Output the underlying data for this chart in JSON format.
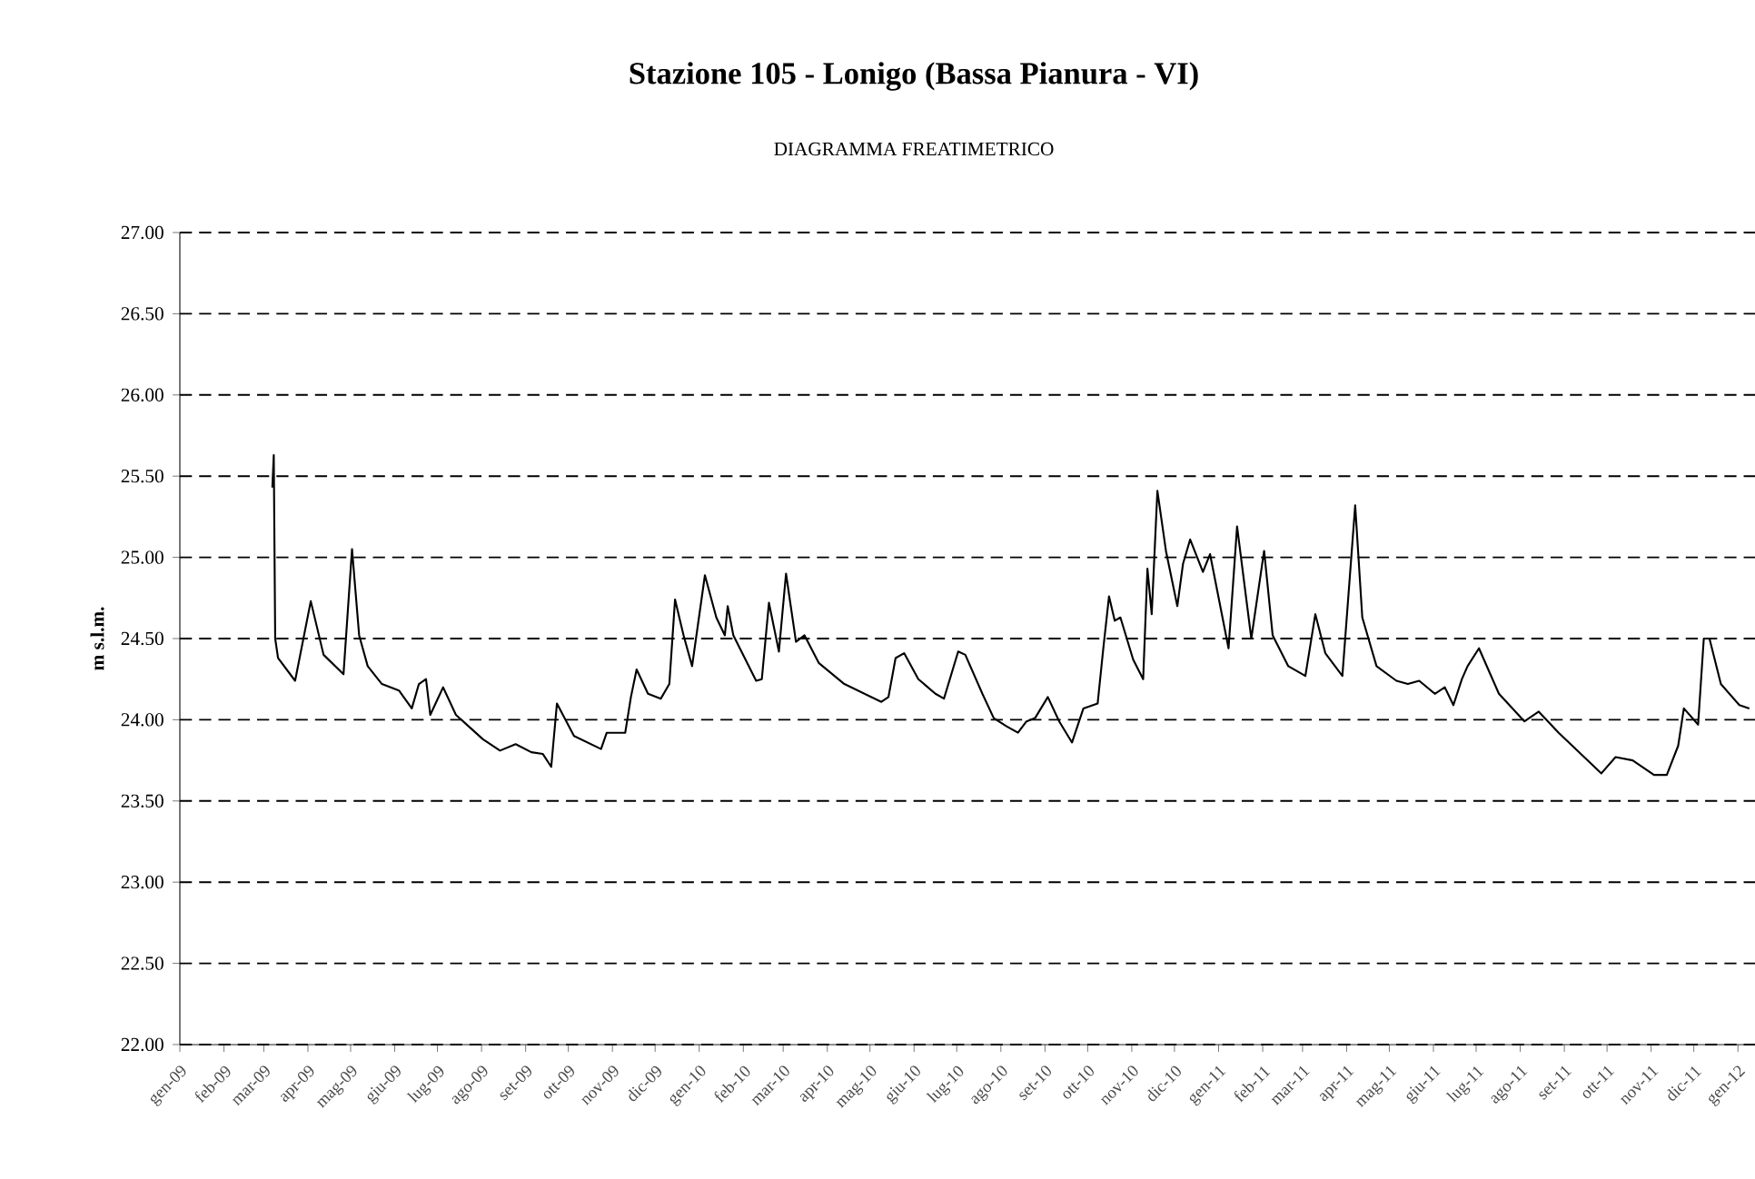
{
  "chart_data": {
    "type": "line",
    "title": "Stazione 105 - Lonigo (Bassa Pianura - VI)",
    "subtitle": "DIAGRAMMA FREATIMETRICO",
    "ylabel": "m s.l.m.",
    "xlim": [
      "2009-01-01",
      "2012-01-13"
    ],
    "ylim": [
      22,
      27
    ],
    "yticks": [
      {
        "value": 22,
        "label": "22.00"
      },
      {
        "value": 22.5,
        "label": "22.50"
      },
      {
        "value": 23,
        "label": "23.00"
      },
      {
        "value": 23.5,
        "label": "23.50"
      },
      {
        "value": 24,
        "label": "24.00"
      },
      {
        "value": 24.5,
        "label": "24.50"
      },
      {
        "value": 25,
        "label": "25.00"
      },
      {
        "value": 25.5,
        "label": "25.50"
      },
      {
        "value": 26,
        "label": "26.00"
      },
      {
        "value": 26.5,
        "label": "26.50"
      },
      {
        "value": 27,
        "label": "27.00"
      }
    ],
    "xticks": [
      {
        "value": "2009-01-01",
        "label": "gen-09"
      },
      {
        "value": "2009-02-01",
        "label": "feb-09"
      },
      {
        "value": "2009-03-01",
        "label": "mar-09"
      },
      {
        "value": "2009-04-01",
        "label": "apr-09"
      },
      {
        "value": "2009-05-01",
        "label": "mag-09"
      },
      {
        "value": "2009-06-01",
        "label": "giu-09"
      },
      {
        "value": "2009-07-01",
        "label": "lug-09"
      },
      {
        "value": "2009-08-01",
        "label": "ago-09"
      },
      {
        "value": "2009-09-01",
        "label": "set-09"
      },
      {
        "value": "2009-10-01",
        "label": "ott-09"
      },
      {
        "value": "2009-11-01",
        "label": "nov-09"
      },
      {
        "value": "2009-12-01",
        "label": "dic-09"
      },
      {
        "value": "2010-01-01",
        "label": "gen-10"
      },
      {
        "value": "2010-02-01",
        "label": "feb-10"
      },
      {
        "value": "2010-03-01",
        "label": "mar-10"
      },
      {
        "value": "2010-04-01",
        "label": "apr-10"
      },
      {
        "value": "2010-05-01",
        "label": "mag-10"
      },
      {
        "value": "2010-06-01",
        "label": "giu-10"
      },
      {
        "value": "2010-07-01",
        "label": "lug-10"
      },
      {
        "value": "2010-08-01",
        "label": "ago-10"
      },
      {
        "value": "2010-09-01",
        "label": "set-10"
      },
      {
        "value": "2010-10-01",
        "label": "ott-10"
      },
      {
        "value": "2010-11-01",
        "label": "nov-10"
      },
      {
        "value": "2010-12-01",
        "label": "dic-10"
      },
      {
        "value": "2011-01-01",
        "label": "gen-11"
      },
      {
        "value": "2011-02-01",
        "label": "feb-11"
      },
      {
        "value": "2011-03-01",
        "label": "mar-11"
      },
      {
        "value": "2011-04-01",
        "label": "apr-11"
      },
      {
        "value": "2011-05-01",
        "label": "mag-11"
      },
      {
        "value": "2011-06-01",
        "label": "giu-11"
      },
      {
        "value": "2011-07-01",
        "label": "lug-11"
      },
      {
        "value": "2011-08-01",
        "label": "ago-11"
      },
      {
        "value": "2011-09-01",
        "label": "set-11"
      },
      {
        "value": "2011-10-01",
        "label": "ott-11"
      },
      {
        "value": "2011-11-01",
        "label": "nov-11"
      },
      {
        "value": "2011-12-01",
        "label": "dic-11"
      },
      {
        "value": "2012-01-01",
        "label": "gen-12"
      }
    ],
    "grid": "y",
    "series": [
      {
        "color": "#000000",
        "x": [
          "2009-03-07",
          "2009-03-08",
          "2009-03-09",
          "2009-03-11",
          "2009-03-23",
          "2009-04-03",
          "2009-04-12",
          "2009-04-26",
          "2009-05-02",
          "2009-05-07",
          "2009-05-13",
          "2009-05-23",
          "2009-06-04",
          "2009-06-13",
          "2009-06-18",
          "2009-06-23",
          "2009-06-26",
          "2009-07-05",
          "2009-07-14",
          "2009-08-02",
          "2009-08-14",
          "2009-08-25",
          "2009-09-05",
          "2009-09-13",
          "2009-09-19",
          "2009-09-23",
          "2009-10-05",
          "2009-10-24",
          "2009-10-28",
          "2009-11-10",
          "2009-11-14",
          "2009-11-18",
          "2009-11-26",
          "2009-12-05",
          "2009-12-11",
          "2009-12-15",
          "2009-12-21",
          "2009-12-27",
          "2010-01-05",
          "2010-01-13",
          "2010-01-19",
          "2010-01-21",
          "2010-01-25",
          "2010-02-10",
          "2010-02-14",
          "2010-02-19",
          "2010-02-26",
          "2010-03-03",
          "2010-03-10",
          "2010-03-16",
          "2010-03-26",
          "2010-04-13",
          "2010-05-09",
          "2010-05-14",
          "2010-05-19",
          "2010-05-25",
          "2010-06-04",
          "2010-06-16",
          "2010-06-22",
          "2010-07-02",
          "2010-07-07",
          "2010-07-19",
          "2010-07-27",
          "2010-08-05",
          "2010-08-13",
          "2010-08-19",
          "2010-08-25",
          "2010-09-03",
          "2010-09-11",
          "2010-09-20",
          "2010-09-28",
          "2010-10-08",
          "2010-10-12",
          "2010-10-16",
          "2010-10-20",
          "2010-10-24",
          "2010-11-02",
          "2010-11-09",
          "2010-11-12",
          "2010-11-15",
          "2010-11-19",
          "2010-11-25",
          "2010-12-03",
          "2010-12-07",
          "2010-12-12",
          "2010-12-21",
          "2010-12-26",
          "2011-01-08",
          "2011-01-14",
          "2011-01-24",
          "2011-02-02",
          "2011-02-08",
          "2011-02-19",
          "2011-03-03",
          "2011-03-10",
          "2011-03-17",
          "2011-03-29",
          "2011-04-07",
          "2011-04-12",
          "2011-04-22",
          "2011-05-06",
          "2011-05-14",
          "2011-05-22",
          "2011-06-02",
          "2011-06-09",
          "2011-06-15",
          "2011-06-21",
          "2011-06-25",
          "2011-07-03",
          "2011-07-17",
          "2011-08-04",
          "2011-08-14",
          "2011-08-28",
          "2011-09-27",
          "2011-10-07",
          "2011-10-19",
          "2011-11-03",
          "2011-11-12",
          "2011-11-20",
          "2011-11-24",
          "2011-12-04",
          "2011-12-08",
          "2011-12-12",
          "2011-12-20",
          "2012-01-02",
          "2012-01-09"
        ],
        "values": [
          25.43,
          25.63,
          24.5,
          24.38,
          24.24,
          24.73,
          24.4,
          24.28,
          25.05,
          24.52,
          24.33,
          24.22,
          24.18,
          24.07,
          24.22,
          24.25,
          24.03,
          24.2,
          24.03,
          23.88,
          23.81,
          23.85,
          23.8,
          23.79,
          23.71,
          24.1,
          23.9,
          23.82,
          23.92,
          23.92,
          24.14,
          24.31,
          24.16,
          24.13,
          24.22,
          24.74,
          24.52,
          24.33,
          24.89,
          24.63,
          24.52,
          24.7,
          24.52,
          24.24,
          24.25,
          24.72,
          24.42,
          24.9,
          24.48,
          24.52,
          24.35,
          24.22,
          24.11,
          24.14,
          24.38,
          24.41,
          24.25,
          24.16,
          24.13,
          24.42,
          24.4,
          24.16,
          24.01,
          23.96,
          23.92,
          23.99,
          24.01,
          24.14,
          23.99,
          23.86,
          24.07,
          24.1,
          24.44,
          24.76,
          24.61,
          24.63,
          24.37,
          24.25,
          24.93,
          24.65,
          25.41,
          25.04,
          24.7,
          24.96,
          25.11,
          24.91,
          25.02,
          24.44,
          25.19,
          24.5,
          25.04,
          24.52,
          24.33,
          24.27,
          24.65,
          24.41,
          24.27,
          25.32,
          24.63,
          24.33,
          24.24,
          24.22,
          24.24,
          24.16,
          24.2,
          24.09,
          24.25,
          24.33,
          24.44,
          24.16,
          23.99,
          24.05,
          23.92,
          23.67,
          23.77,
          23.75,
          23.66,
          23.66,
          23.84,
          24.07,
          23.97,
          24.5,
          24.5,
          24.22,
          24.09,
          24.07
        ]
      }
    ]
  }
}
